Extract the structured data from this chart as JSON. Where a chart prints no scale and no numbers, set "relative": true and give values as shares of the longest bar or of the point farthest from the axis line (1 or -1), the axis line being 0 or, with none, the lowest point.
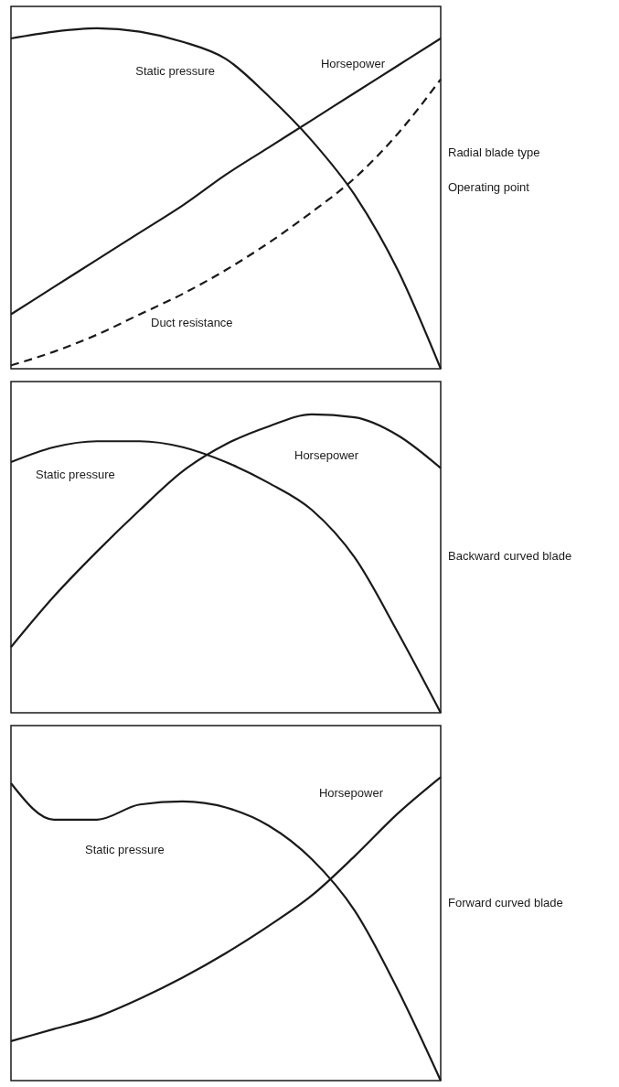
{
  "chart_data": [
    {
      "type": "line",
      "relative": true,
      "categories": [
        null,
        null,
        null,
        null,
        null,
        null,
        null,
        null,
        null,
        null,
        null
      ],
      "series": [
        {
          "name": "Static pressure",
          "color": "#1a1a1a",
          "values": [
            0.97,
            0.99,
            1,
            0.99,
            0.96,
            0.91,
            0.8,
            0.67,
            0.51,
            0.29,
            0
          ]
        },
        {
          "name": "Horsepower",
          "color": "#1a1a1a",
          "values": [
            0.16,
            0.24,
            0.32,
            0.4,
            0.48,
            0.57,
            0.65,
            0.73,
            0.81,
            0.89,
            0.97
          ]
        },
        {
          "name": "Duct resistance",
          "color": "#1a1a1a",
          "line_style": "dashed",
          "values": [
            0.01,
            0.05,
            0.1,
            0.16,
            0.22,
            0.29,
            0.37,
            0.46,
            0.56,
            0.69,
            0.85
          ]
        }
      ],
      "annotations": [
        "Radial blade type",
        "Operating point"
      ]
    },
    {
      "type": "line",
      "relative": true,
      "categories": [
        null,
        null,
        null,
        null,
        null,
        null,
        null,
        null,
        null,
        null,
        null
      ],
      "series": [
        {
          "name": "Static pressure",
          "color": "#1a1a1a",
          "values": [
            0.84,
            0.89,
            0.91,
            0.91,
            0.89,
            0.84,
            0.77,
            0.68,
            0.52,
            0.27,
            0
          ]
        },
        {
          "name": "Horsepower",
          "color": "#1a1a1a",
          "values": [
            0.22,
            0.39,
            0.54,
            0.68,
            0.81,
            0.9,
            0.96,
            1,
            0.99,
            0.93,
            0.82
          ]
        }
      ],
      "annotations": [
        "Backward curved blade"
      ]
    },
    {
      "type": "line",
      "relative": true,
      "categories": [
        null,
        null,
        null,
        null,
        null,
        null,
        null,
        null,
        null,
        null,
        null
      ],
      "series": [
        {
          "name": "Static pressure",
          "color": "#1a1a1a",
          "values": [
            0.98,
            0.86,
            0.86,
            0.91,
            0.92,
            0.9,
            0.84,
            0.73,
            0.56,
            0.3,
            0
          ]
        },
        {
          "name": "Horsepower",
          "color": "#1a1a1a",
          "values": [
            0.13,
            0.17,
            0.21,
            0.27,
            0.34,
            0.42,
            0.51,
            0.61,
            0.74,
            0.88,
            1
          ]
        }
      ],
      "annotations": [
        "Forward curved blade"
      ]
    }
  ]
}
